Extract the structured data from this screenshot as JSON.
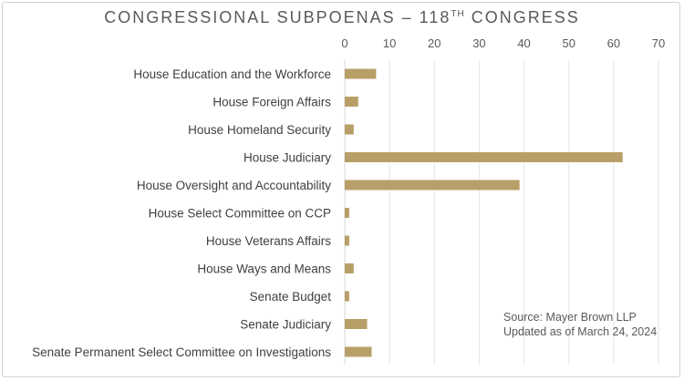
{
  "chart_data": {
    "type": "bar",
    "orientation": "horizontal",
    "title": "CONGRESSIONAL SUBPOENAS – 118",
    "title_superscript": "TH",
    "title_suffix": " CONGRESS",
    "categories": [
      "House Education and the Workforce",
      "House Foreign Affairs",
      "House Homeland Security",
      "House Judiciary",
      "House Oversight and Accountability",
      "House Select Committee on CCP",
      "House Veterans Affairs",
      "House Ways and Means",
      "Senate Budget",
      "Senate Judiciary",
      "Senate Permanent Select Committee on Investigations"
    ],
    "values": [
      7,
      3,
      2,
      62,
      39,
      1,
      1,
      2,
      1,
      5,
      6
    ],
    "xlim": [
      0,
      70
    ],
    "xticks": [
      0,
      10,
      20,
      30,
      40,
      50,
      60,
      70
    ],
    "axis_position": "top",
    "grid": true,
    "bar_color": "#b89f68",
    "grid_color": "#e6e6e6",
    "annotation": [
      "Source: Mayer Brown LLP",
      "Updated as of March 24, 2024"
    ]
  }
}
